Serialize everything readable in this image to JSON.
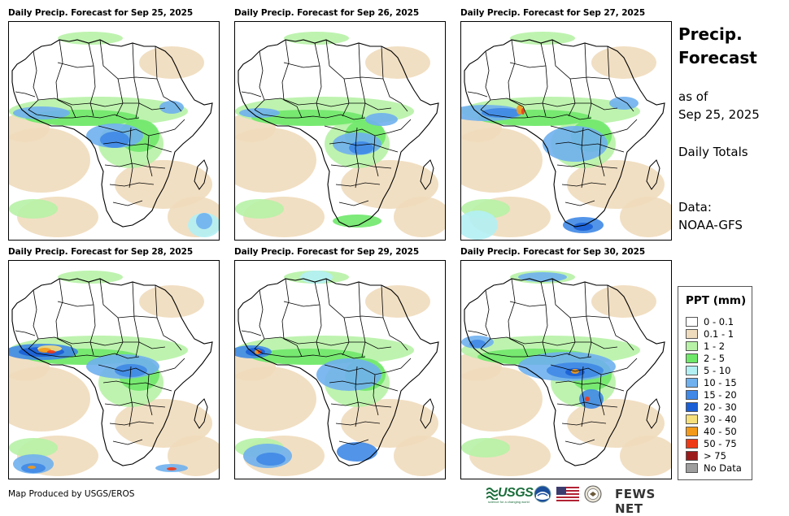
{
  "panels": [
    {
      "title": "Daily Precip. Forecast for Sep 25, 2025"
    },
    {
      "title": "Daily Precip. Forecast for Sep 26, 2025"
    },
    {
      "title": "Daily Precip. Forecast for Sep 27, 2025"
    },
    {
      "title": "Daily Precip. Forecast for Sep 28, 2025"
    },
    {
      "title": "Daily Precip. Forecast for Sep 29, 2025"
    },
    {
      "title": "Daily Precip. Forecast for Sep 30, 2025"
    }
  ],
  "side": {
    "title_line1": "Precip.",
    "title_line2": "Forecast",
    "asof_line1": "as of",
    "asof_line2": "Sep 25, 2025",
    "totals": "Daily Totals",
    "data_line1": "Data:",
    "data_line2": "NOAA-GFS"
  },
  "legend": {
    "title": "PPT (mm)",
    "items": [
      {
        "label": "0 - 0.1",
        "color": "#ffffff"
      },
      {
        "label": "0.1 - 1",
        "color": "#efdcbd"
      },
      {
        "label": "1 - 2",
        "color": "#b7f2a6"
      },
      {
        "label": "2 - 5",
        "color": "#6fe86a"
      },
      {
        "label": "5 - 10",
        "color": "#b3f0f4"
      },
      {
        "label": "10 - 15",
        "color": "#6fb0ee"
      },
      {
        "label": "15 - 20",
        "color": "#3f88e6"
      },
      {
        "label": "20 - 30",
        "color": "#1a5fd6"
      },
      {
        "label": "30 - 40",
        "color": "#f6e07c"
      },
      {
        "label": "40 - 50",
        "color": "#f39a1b"
      },
      {
        "label": "50 - 75",
        "color": "#ef3a16"
      },
      {
        "label": "> 75",
        "color": "#9b1b1b"
      },
      {
        "label": "No Data",
        "color": "#9e9e9e"
      }
    ]
  },
  "footer": {
    "credit": "Map Produced by USGS/EROS",
    "usgs": "USGS",
    "usgs_tagline": "science for a changing world",
    "fews": "FEWS NET"
  }
}
